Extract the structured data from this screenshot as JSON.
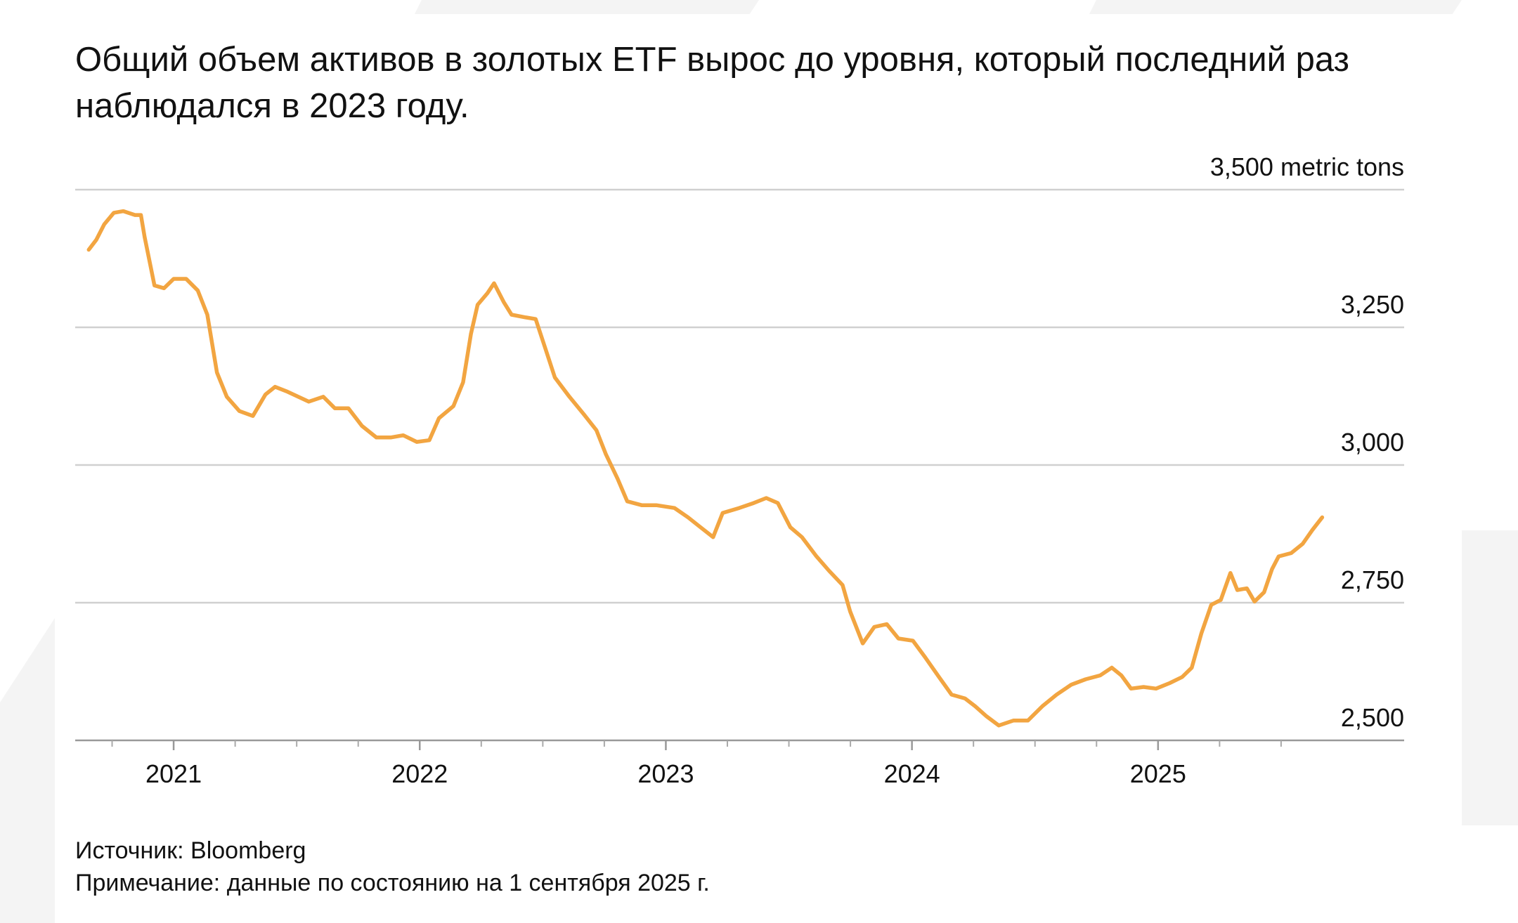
{
  "chart_data": {
    "type": "line",
    "title": "Общий объем активов в золотых ETF вырос до уровня, который последний раз наблюдался в 2023 году.",
    "source": "Источник: Bloomberg",
    "note": "Примечание: данные по состоянию на 1 сентября 2025 г.",
    "color": "#f2a541",
    "grid": true,
    "xlim": [
      2020.6,
      2026.0
    ],
    "xticks": [
      2021,
      2022,
      2023,
      2024,
      2025
    ],
    "xminorticks": [
      2020.75,
      2021.25,
      2021.5,
      2021.75,
      2022.25,
      2022.5,
      2022.75,
      2023.25,
      2023.5,
      2023.75,
      2024.25,
      2024.5,
      2024.75,
      2025.25,
      2025.5
    ],
    "ylim": [
      2500,
      3500
    ],
    "yticks": [
      {
        "value": 2500,
        "label": "2,500"
      },
      {
        "value": 2750,
        "label": "2,750"
      },
      {
        "value": 3000,
        "label": "3,000"
      },
      {
        "value": 3250,
        "label": "3,250"
      },
      {
        "value": 3500,
        "label": "3,500 metric tons"
      }
    ],
    "x": [
      2020.655,
      2020.686,
      2020.718,
      2020.757,
      2020.796,
      2020.843,
      2020.867,
      2020.882,
      2020.922,
      2020.961,
      2021.0,
      2021.051,
      2021.098,
      2021.137,
      2021.176,
      2021.216,
      2021.267,
      2021.322,
      2021.373,
      2021.412,
      2021.463,
      2021.549,
      2021.608,
      2021.655,
      2021.71,
      2021.765,
      2021.824,
      2021.882,
      2021.933,
      2021.988,
      2022.039,
      2022.078,
      2022.137,
      2022.176,
      2022.208,
      2022.235,
      2022.275,
      2022.302,
      2022.341,
      2022.373,
      2022.431,
      2022.471,
      2022.51,
      2022.549,
      2022.608,
      2022.667,
      2022.718,
      2022.757,
      2022.804,
      2022.843,
      2022.902,
      2022.961,
      2023.035,
      2023.09,
      2023.141,
      2023.192,
      2023.231,
      2023.298,
      2023.357,
      2023.408,
      2023.455,
      2023.506,
      2023.553,
      2023.612,
      2023.663,
      2023.718,
      2023.749,
      2023.8,
      2023.847,
      2023.898,
      2023.945,
      2024.004,
      2024.055,
      2024.11,
      2024.161,
      2024.216,
      2024.257,
      2024.302,
      2024.353,
      2024.412,
      2024.471,
      2024.53,
      2024.588,
      2024.647,
      2024.706,
      2024.765,
      2024.812,
      2024.851,
      2024.89,
      2024.941,
      2024.992,
      2025.047,
      2025.098,
      2025.137,
      2025.176,
      2025.216,
      2025.255,
      2025.294,
      2025.322,
      2025.361,
      2025.392,
      2025.431,
      2025.463,
      2025.49,
      2025.541,
      2025.588,
      2025.627,
      2025.667
    ],
    "values": [
      3391,
      3409,
      3437,
      3458,
      3461,
      3454,
      3454,
      3414,
      3326,
      3321,
      3338,
      3338,
      3317,
      3273,
      3168,
      3124,
      3098,
      3089,
      3128,
      3142,
      3133,
      3115,
      3124,
      3103,
      3103,
      3071,
      3050,
      3050,
      3054,
      3042,
      3045,
      3085,
      3107,
      3150,
      3238,
      3291,
      3312,
      3330,
      3296,
      3273,
      3268,
      3265,
      3212,
      3159,
      3124,
      3092,
      3063,
      3019,
      2975,
      2934,
      2927,
      2927,
      2922,
      2905,
      2887,
      2869,
      2913,
      2922,
      2931,
      2940,
      2931,
      2887,
      2869,
      2834,
      2808,
      2782,
      2734,
      2676,
      2706,
      2711,
      2685,
      2681,
      2650,
      2615,
      2583,
      2576,
      2562,
      2544,
      2527,
      2536,
      2536,
      2562,
      2583,
      2601,
      2611,
      2618,
      2632,
      2618,
      2594,
      2597,
      2594,
      2604,
      2615,
      2632,
      2694,
      2746,
      2755,
      2804,
      2773,
      2776,
      2752,
      2769,
      2811,
      2834,
      2840,
      2857,
      2882,
      2905
    ]
  }
}
